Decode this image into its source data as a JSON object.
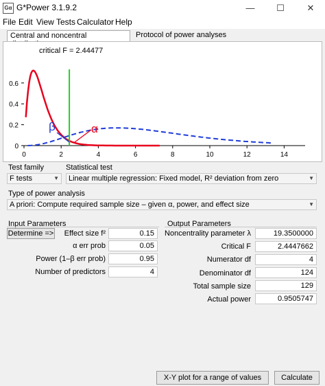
{
  "window": {
    "title": "G*Power 3.1.9.2",
    "minimize": "—",
    "maximize": "☐",
    "close": "✕"
  },
  "menu": [
    "File",
    "Edit",
    "View",
    "Tests",
    "Calculator",
    "Help"
  ],
  "tabs": {
    "distributions": "Central and noncentral distributions",
    "protocol": "Protocol of power analyses"
  },
  "plot": {
    "critical_label": "critical F = 2.44477",
    "y_ticks": [
      "0.6",
      "0.4",
      "0.2",
      "0"
    ],
    "x_ticks": [
      "0",
      "2",
      "4",
      "6",
      "8",
      "10",
      "12",
      "14"
    ],
    "beta_label": "β",
    "alpha_label": "α",
    "colors": {
      "central": "#e8001c",
      "noncentral": "#1e3cd8",
      "critical": "#22cc22",
      "beta": "#1e3cd8",
      "alpha": "#e8001c"
    }
  },
  "test_family": {
    "label": "Test family",
    "value": "F tests"
  },
  "statistical_test": {
    "label": "Statistical test",
    "value": "Linear multiple regression: Fixed model, R² deviation from zero"
  },
  "power_analysis": {
    "label": "Type of power analysis",
    "value": "A priori: Compute required sample size – given α, power, and effect size"
  },
  "input": {
    "title": "Input Parameters",
    "determine": "Determine =>",
    "rows": [
      {
        "label": "Effect size f²",
        "value": "0.15"
      },
      {
        "label": "α err prob",
        "value": "0.05"
      },
      {
        "label": "Power (1–β err prob)",
        "value": "0.95"
      },
      {
        "label": "Number of predictors",
        "value": "4"
      }
    ]
  },
  "output": {
    "title": "Output Parameters",
    "rows": [
      {
        "label": "Noncentrality parameter λ",
        "value": "19.3500000"
      },
      {
        "label": "Critical F",
        "value": "2.4447662"
      },
      {
        "label": "Numerator df",
        "value": "4"
      },
      {
        "label": "Denominator df",
        "value": "124"
      },
      {
        "label": "Total sample size",
        "value": "129"
      },
      {
        "label": "Actual power",
        "value": "0.9505747"
      }
    ]
  },
  "buttons": {
    "xy_plot": "X-Y plot for a range of values",
    "calculate": "Calculate"
  }
}
